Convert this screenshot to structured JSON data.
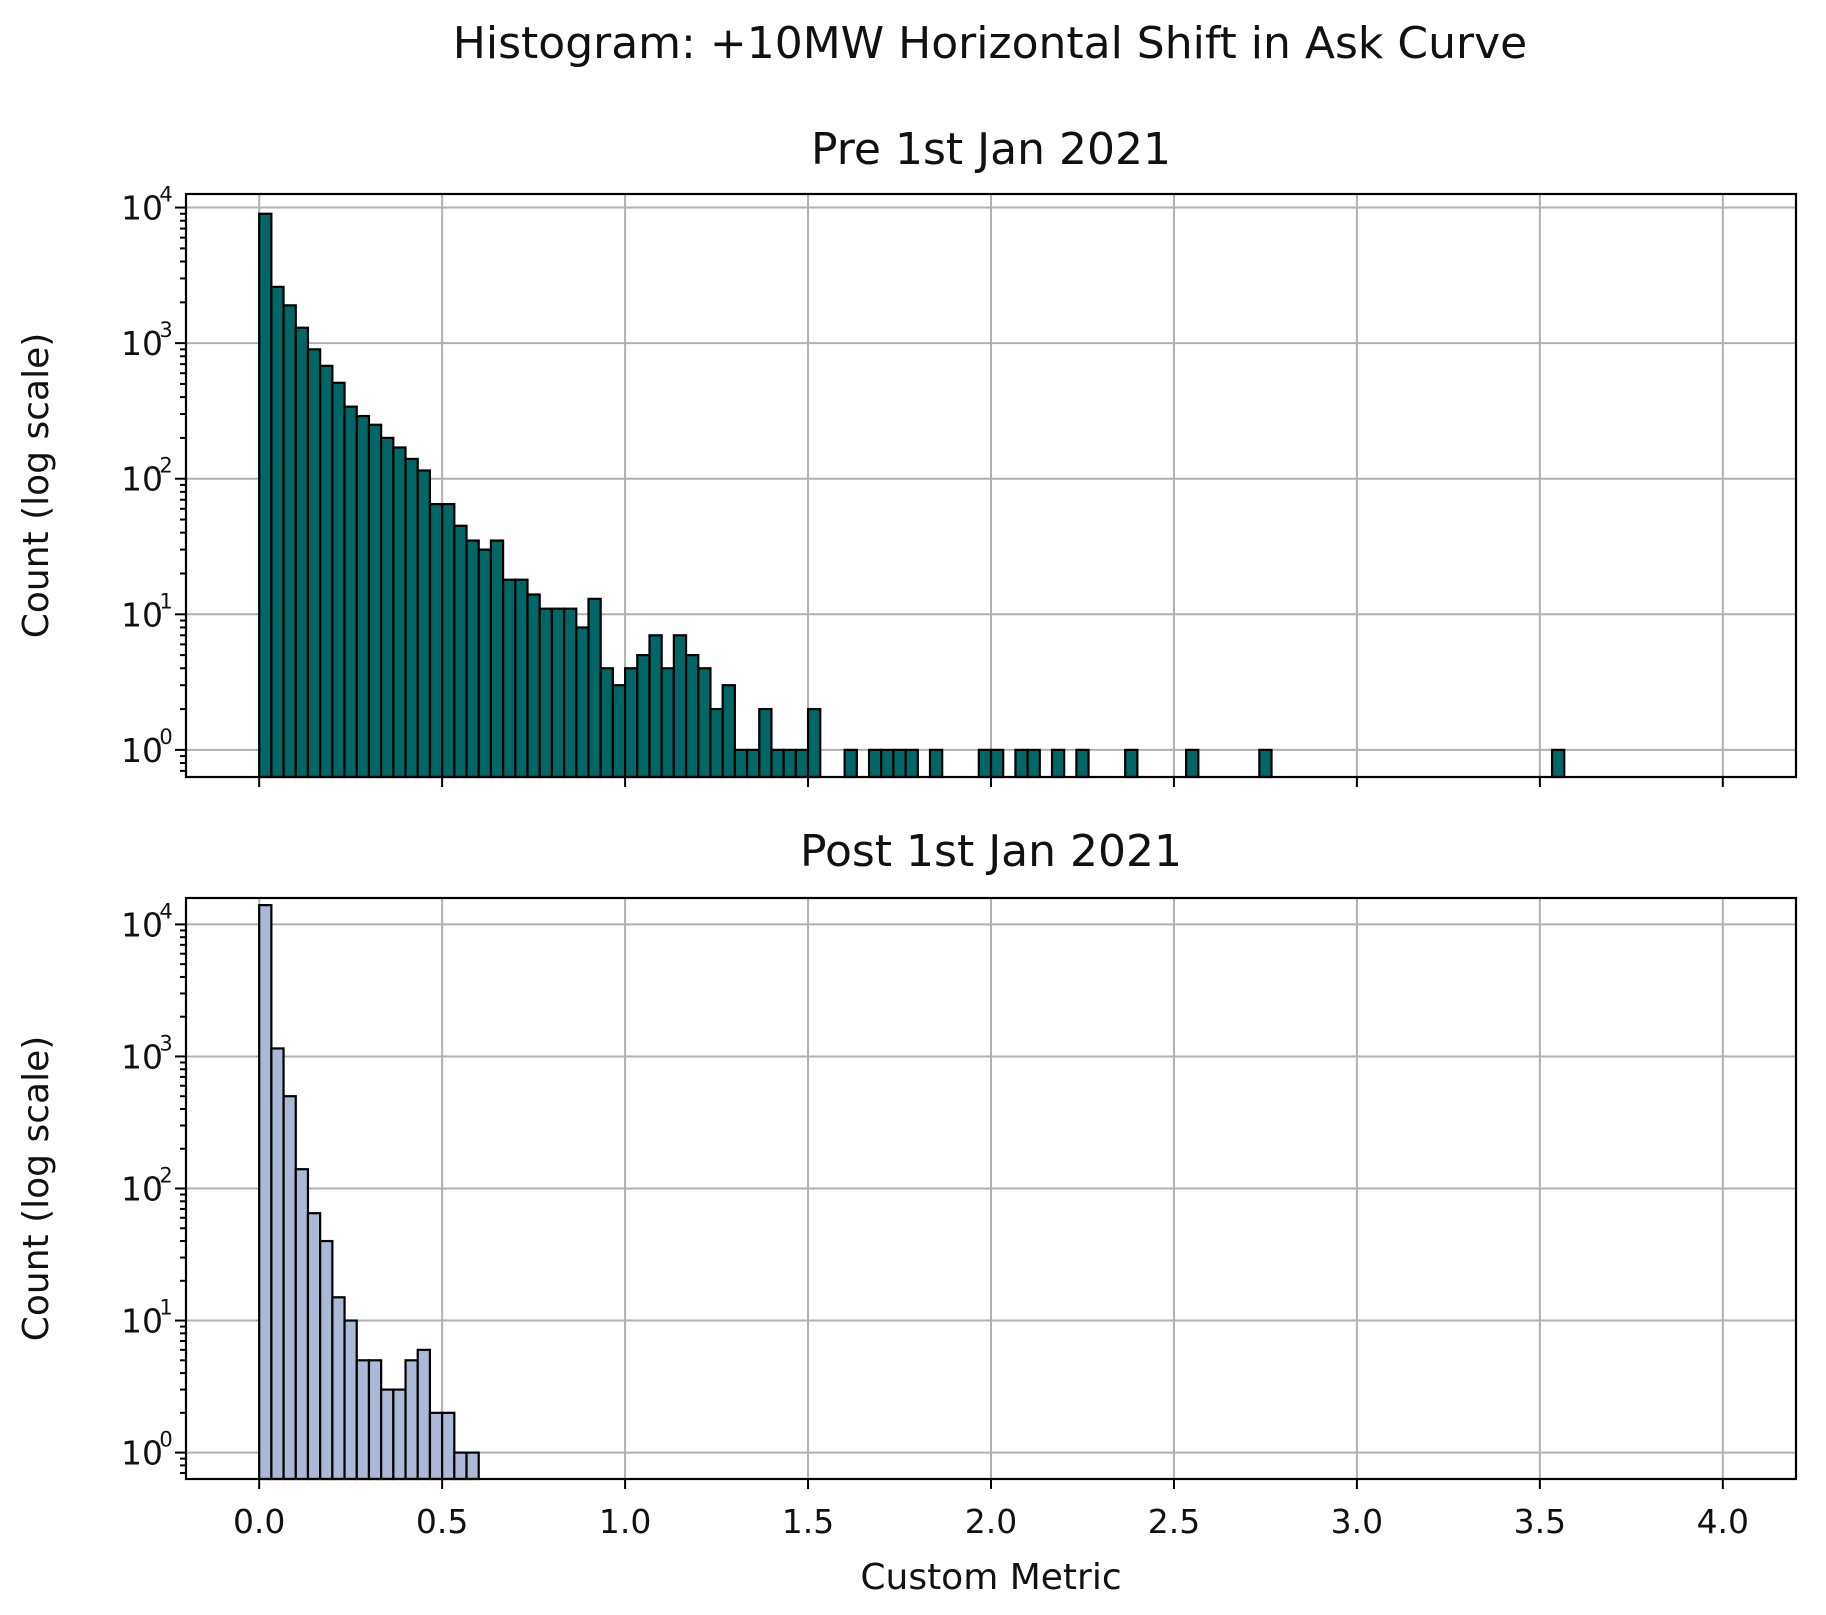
{
  "figure": {
    "suptitle": "Histogram: +10MW Horizontal Shift in Ask Curve"
  },
  "chart_data": [
    {
      "type": "bar",
      "subtype": "histogram",
      "title": "Pre 1st Jan 2021",
      "xlabel": "",
      "ylabel": "Count (log scale)",
      "yscale": "log",
      "xlim": [
        -0.2,
        4.2
      ],
      "ylim_exponent": [
        -0.2,
        4.1
      ],
      "xticks": [
        0.0,
        0.5,
        1.0,
        1.5,
        2.0,
        2.5,
        3.0,
        3.5,
        4.0
      ],
      "xticklabels_visible": false,
      "yticks_exponent": [
        0,
        1,
        2,
        3,
        4
      ],
      "grid": true,
      "bin_width": 0.0333,
      "color": "#006666",
      "bins_left": [
        0.0,
        0.0333,
        0.0667,
        0.1,
        0.1333,
        0.1667,
        0.2,
        0.2333,
        0.2667,
        0.3,
        0.3333,
        0.3667,
        0.4,
        0.4333,
        0.4667,
        0.5,
        0.5333,
        0.5667,
        0.6,
        0.6333,
        0.6667,
        0.7,
        0.7333,
        0.7667,
        0.8,
        0.8333,
        0.8667,
        0.9,
        0.9333,
        0.9667,
        1.0,
        1.0333,
        1.0667,
        1.1,
        1.1333,
        1.1667,
        1.2,
        1.2333,
        1.2667,
        1.3,
        1.3333,
        1.3667,
        1.4,
        1.4333,
        1.4667,
        1.5,
        1.6,
        1.6667,
        1.7,
        1.7333,
        1.7667,
        1.8333,
        1.9667,
        2.0,
        2.0667,
        2.1,
        2.1667,
        2.2333,
        2.3667,
        2.5333,
        2.7333,
        3.5333
      ],
      "counts": [
        9000,
        2600,
        1900,
        1300,
        900,
        680,
        510,
        340,
        290,
        250,
        200,
        170,
        140,
        115,
        65,
        65,
        45,
        35,
        30,
        35,
        18,
        18,
        14,
        11,
        11,
        11,
        8,
        13,
        4,
        3,
        4,
        5,
        7,
        4,
        7,
        5,
        4,
        2,
        3,
        1,
        1,
        2,
        1,
        1,
        1,
        2,
        1,
        1,
        1,
        1,
        1,
        1,
        1,
        1,
        1,
        1,
        1,
        1,
        1,
        1,
        1,
        1
      ]
    },
    {
      "type": "bar",
      "subtype": "histogram",
      "title": "Post 1st Jan 2021",
      "xlabel": "Custom Metric",
      "ylabel": "Count (log scale)",
      "yscale": "log",
      "xlim": [
        -0.2,
        4.2
      ],
      "ylim_exponent": [
        -0.2,
        4.2
      ],
      "xticks": [
        0.0,
        0.5,
        1.0,
        1.5,
        2.0,
        2.5,
        3.0,
        3.5,
        4.0
      ],
      "xticklabels": [
        "0.0",
        "0.5",
        "1.0",
        "1.5",
        "2.0",
        "2.5",
        "3.0",
        "3.5",
        "4.0"
      ],
      "yticks_exponent": [
        0,
        1,
        2,
        3,
        4
      ],
      "grid": true,
      "bin_width": 0.0333,
      "color": "#a9b9d6",
      "bins_left": [
        0.0,
        0.0333,
        0.0667,
        0.1,
        0.1333,
        0.1667,
        0.2,
        0.2333,
        0.2667,
        0.3,
        0.3333,
        0.3667,
        0.4,
        0.4333,
        0.4667,
        0.5,
        0.5333,
        0.5667
      ],
      "counts": [
        14000,
        1150,
        500,
        140,
        65,
        40,
        15,
        10,
        5,
        5,
        3,
        3,
        5,
        6,
        2,
        2,
        1,
        1
      ]
    }
  ]
}
